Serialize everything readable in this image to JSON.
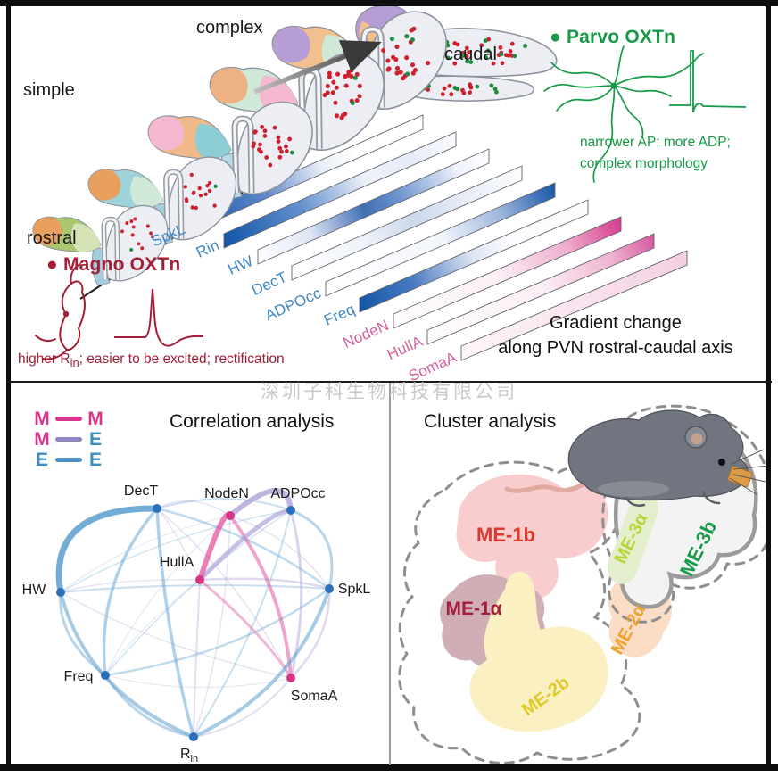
{
  "figure": {
    "watermark": "深圳子科生物科技有限公司"
  },
  "top_panel": {
    "axis_labels": {
      "simple": "simple",
      "complex": "complex",
      "rostral": "rostral",
      "caudal": "caudal"
    },
    "caption": "Gradient change\nalong PVN rostral-caudal axis",
    "magno": {
      "bullet": "●",
      "title": "Magno OXTn",
      "desc_prefix": "higher R",
      "desc_sub": "in",
      "desc_suffix": "; easier to be excited; rectification",
      "color": "#a41e35"
    },
    "parvo": {
      "bullet": "●",
      "title": "Parvo OXTn",
      "desc": "narrower AP; more ADP;\ncomplex morphology",
      "color": "#169a47"
    },
    "gradient_bars": [
      {
        "label": "SpkL",
        "label_color": "#3f87c5",
        "stops": [
          [
            0,
            "#1558a8"
          ],
          [
            0.3,
            "#5c86c8"
          ],
          [
            0.55,
            "#e9eef7"
          ],
          [
            0.7,
            "#ffffff"
          ],
          [
            1,
            "#ffffff"
          ]
        ]
      },
      {
        "label": "Rin",
        "label_color": "#3f87c5",
        "stops": [
          [
            0,
            "#1558a8"
          ],
          [
            0.32,
            "#6390cd"
          ],
          [
            0.6,
            "#eef2f9"
          ],
          [
            0.8,
            "#e6ecf7"
          ],
          [
            1,
            "#fbfcff"
          ]
        ]
      },
      {
        "label": "HW",
        "label_color": "#3f87c5",
        "stops": [
          [
            0,
            "#fdfdff"
          ],
          [
            0.22,
            "#dde5f3"
          ],
          [
            0.45,
            "#3f6fb4"
          ],
          [
            0.6,
            "#6e95cf"
          ],
          [
            0.85,
            "#eef2fa"
          ],
          [
            1,
            "#ffffff"
          ]
        ]
      },
      {
        "label": "DecT",
        "label_color": "#3f87c5",
        "stops": [
          [
            0,
            "#ffffff"
          ],
          [
            0.3,
            "#eef2f9"
          ],
          [
            0.52,
            "#ccd8ec"
          ],
          [
            0.7,
            "#e4eaf5"
          ],
          [
            1,
            "#fdfdff"
          ]
        ]
      },
      {
        "label": "ADPOcc",
        "label_color": "#3f87c5",
        "stops": [
          [
            0,
            "#ffffff"
          ],
          [
            0.5,
            "#f2f5fb"
          ],
          [
            0.75,
            "#9db7dd"
          ],
          [
            0.93,
            "#3a6cb3"
          ],
          [
            1,
            "#1558a8"
          ]
        ]
      },
      {
        "label": "Freq",
        "label_color": "#3f87c5",
        "stops": [
          [
            0,
            "#1558a8"
          ],
          [
            0.22,
            "#4a7ac0"
          ],
          [
            0.48,
            "#dde5f3"
          ],
          [
            0.65,
            "#fbfcfe"
          ],
          [
            1,
            "#fdfbfc"
          ]
        ]
      },
      {
        "label": "NodeN",
        "label_color": "#d2609f",
        "stops": [
          [
            0,
            "#fefcfd"
          ],
          [
            0.45,
            "#fbeff5"
          ],
          [
            0.75,
            "#eeaecd"
          ],
          [
            0.93,
            "#dc579c"
          ],
          [
            1,
            "#d23c8e"
          ]
        ]
      },
      {
        "label": "HullA",
        "label_color": "#d2609f",
        "stops": [
          [
            0,
            "#fefcfd"
          ],
          [
            0.5,
            "#fbeff5"
          ],
          [
            0.8,
            "#efb3d0"
          ],
          [
            1,
            "#d6539b"
          ]
        ]
      },
      {
        "label": "SomaA",
        "label_color": "#d2609f",
        "stops": [
          [
            0,
            "#fdf6f9"
          ],
          [
            0.5,
            "#f9e4ee"
          ],
          [
            1,
            "#f4cfe1"
          ]
        ]
      }
    ]
  },
  "correlation": {
    "title": "Correlation analysis",
    "legend": [
      {
        "left": "M",
        "right": "M",
        "line_color": "#d6388f"
      },
      {
        "left": "M",
        "right": "E",
        "line_color": "#8f86c4"
      },
      {
        "left": "E",
        "right": "E",
        "line_color": "#4a90c6"
      }
    ],
    "type_colors": {
      "M": "#d6388f",
      "E": "#3d8ebf"
    },
    "node_colors": {
      "M": "#d63384",
      "E": "#2d6fb8"
    },
    "edge_colors": {
      "MM": "#e2569e",
      "ME": "#a89dd6",
      "EE": "#5b9fcf"
    },
    "nodes": [
      {
        "id": "DecT",
        "label": "DecT",
        "type": "E"
      },
      {
        "id": "NodeN",
        "label": "NodeN",
        "type": "M"
      },
      {
        "id": "ADPOcc",
        "label": "ADPOcc",
        "type": "E"
      },
      {
        "id": "HullA",
        "label": "HullA",
        "type": "M"
      },
      {
        "id": "HW",
        "label": "HW",
        "type": "E"
      },
      {
        "id": "SpkL",
        "label": "SpkL",
        "type": "E"
      },
      {
        "id": "Freq",
        "label": "Freq",
        "type": "E"
      },
      {
        "id": "SomaA",
        "label": "SomaA",
        "type": "M"
      },
      {
        "id": "Rin",
        "label": "R",
        "label_sub": "in",
        "type": "E"
      }
    ],
    "edges": [
      [
        "DecT",
        "HW",
        "EE",
        7
      ],
      [
        "NodeN",
        "HullA",
        "MM",
        6
      ],
      [
        "NodeN",
        "ADPOcc",
        "ME",
        6
      ],
      [
        "HullA",
        "ADPOcc",
        "ME",
        5
      ],
      [
        "NodeN",
        "SomaA",
        "MM",
        4
      ],
      [
        "HW",
        "Rin",
        "EE",
        4
      ],
      [
        "SpkL",
        "Rin",
        "EE",
        4
      ],
      [
        "DecT",
        "Freq",
        "EE",
        3.5
      ],
      [
        "DecT",
        "Rin",
        "EE",
        3.5
      ],
      [
        "HullA",
        "SomaA",
        "MM",
        3
      ],
      [
        "ADPOcc",
        "SpkL",
        "EE",
        3
      ],
      [
        "HW",
        "Freq",
        "EE",
        3
      ],
      [
        "Freq",
        "Rin",
        "EE",
        3
      ],
      [
        "SomaA",
        "ADPOcc",
        "ME",
        3
      ],
      [
        "DecT",
        "SpkL",
        "EE",
        2.5
      ],
      [
        "SpkL",
        "Freq",
        "EE",
        2.5
      ],
      [
        "HullA",
        "SpkL",
        "ME",
        2.5
      ],
      [
        "SomaA",
        "SpkL",
        "ME",
        2.5
      ],
      [
        "DecT",
        "ADPOcc",
        "EE",
        2
      ],
      [
        "ADPOcc",
        "Rin",
        "EE",
        2
      ],
      [
        "HW",
        "SpkL",
        "EE",
        2
      ],
      [
        "HullA",
        "Rin",
        "ME",
        2
      ],
      [
        "SomaA",
        "Rin",
        "ME",
        2
      ],
      [
        "ADPOcc",
        "HW",
        "EE",
        1.5
      ],
      [
        "ADPOcc",
        "Freq",
        "EE",
        1.5
      ],
      [
        "NodeN",
        "DecT",
        "ME",
        1.5
      ],
      [
        "NodeN",
        "SpkL",
        "ME",
        1.5
      ],
      [
        "NodeN",
        "Rin",
        "ME",
        1.5
      ],
      [
        "HullA",
        "DecT",
        "ME",
        1.5
      ],
      [
        "HullA",
        "HW",
        "ME",
        1.5
      ],
      [
        "SomaA",
        "DecT",
        "ME",
        1.5
      ],
      [
        "SomaA",
        "HW",
        "ME",
        1.5
      ],
      [
        "NodeN",
        "HW",
        "ME",
        1.2
      ],
      [
        "NodeN",
        "Freq",
        "ME",
        1.2
      ],
      [
        "HullA",
        "Freq",
        "ME",
        1.2
      ],
      [
        "SomaA",
        "Freq",
        "ME",
        1.2
      ]
    ]
  },
  "cluster": {
    "title": "Cluster analysis",
    "clusters": [
      {
        "label": "ME-1b",
        "text_color": "#d93b30",
        "fill": "#f8c8ca"
      },
      {
        "label": "ME-1α",
        "text_color": "#a51c3e",
        "fill": "#d0aeb6"
      },
      {
        "label": "ME-2α",
        "text_color": "#f0a22e",
        "fill": "#fbdcc4"
      },
      {
        "label": "ME-2b",
        "text_color": "#e0ca2a",
        "fill": "#faf0c2"
      },
      {
        "label": "ME-3α",
        "text_color": "#b8d435",
        "fill": "#e3efcc"
      },
      {
        "label": "ME-3b",
        "text_color": "#199a4a",
        "fill": "#f3f3f3"
      }
    ]
  }
}
